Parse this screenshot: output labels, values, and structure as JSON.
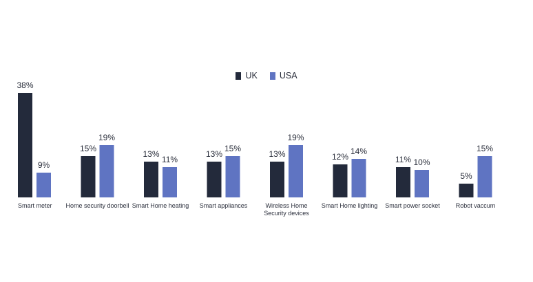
{
  "chart_data": {
    "type": "bar",
    "categories": [
      "Smart meter",
      "Home security doorbell",
      "Smart Home heating",
      "Smart appliances",
      "Wireless Home Security devices",
      "Smart Home lighting",
      "Smart power socket",
      "Robot vaccum"
    ],
    "series": [
      {
        "name": "UK",
        "color": "#232a3b",
        "values": [
          38,
          15,
          13,
          13,
          13,
          12,
          11,
          5
        ]
      },
      {
        "name": "USA",
        "color": "#5f74c2",
        "values": [
          9,
          19,
          11,
          15,
          19,
          14,
          10,
          15
        ]
      }
    ],
    "value_suffix": "%",
    "ylim": [
      0,
      40
    ],
    "grid": false,
    "legend_position": "top-center",
    "title": "",
    "xlabel": "",
    "ylabel": ""
  }
}
